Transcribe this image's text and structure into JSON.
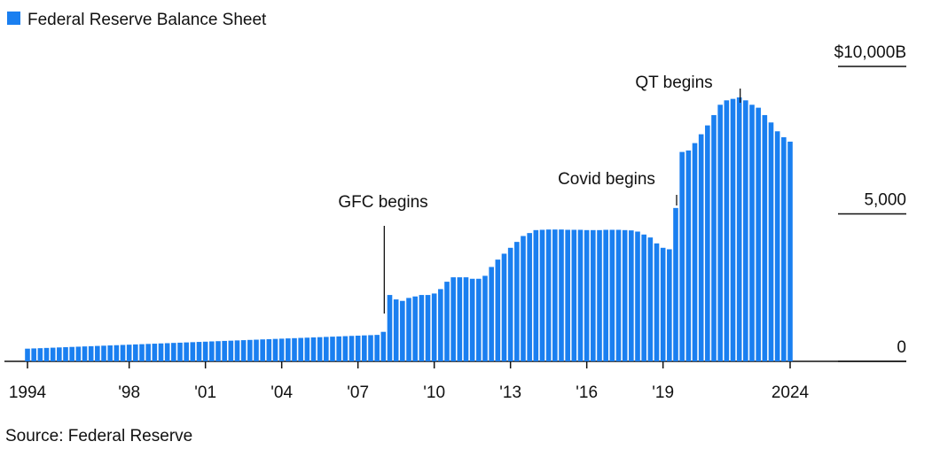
{
  "chart_data": {
    "type": "bar",
    "title": "Federal Reserve Balance Sheet",
    "source": "Source: Federal Reserve",
    "color": "#1a7ff0",
    "categories": [
      "1994",
      null,
      null,
      null,
      null,
      null,
      null,
      null,
      null,
      null,
      null,
      null,
      null,
      null,
      null,
      null,
      "'98",
      null,
      null,
      null,
      null,
      null,
      null,
      null,
      null,
      null,
      null,
      null,
      "'01",
      null,
      null,
      null,
      null,
      null,
      null,
      null,
      null,
      null,
      null,
      null,
      "'04",
      null,
      null,
      null,
      null,
      null,
      null,
      null,
      null,
      null,
      null,
      null,
      "'07",
      null,
      null,
      null,
      null,
      null,
      null,
      null,
      null,
      null,
      null,
      null,
      "'10",
      null,
      null,
      null,
      null,
      null,
      null,
      null,
      null,
      null,
      null,
      null,
      "'13",
      null,
      null,
      null,
      null,
      null,
      null,
      null,
      null,
      null,
      null,
      null,
      "'16",
      null,
      null,
      null,
      null,
      null,
      null,
      null,
      null,
      null,
      null,
      null,
      "'19",
      null,
      null,
      null,
      null,
      null,
      null,
      null,
      null,
      null,
      null,
      null,
      null,
      null,
      null,
      null,
      null,
      null,
      null,
      null,
      "2024"
    ],
    "values": [
      430,
      438,
      446,
      455,
      463,
      472,
      480,
      489,
      497,
      506,
      514,
      523,
      531,
      540,
      548,
      557,
      565,
      574,
      582,
      591,
      599,
      608,
      616,
      625,
      633,
      642,
      650,
      659,
      667,
      676,
      684,
      693,
      701,
      710,
      718,
      727,
      735,
      744,
      752,
      761,
      769,
      778,
      786,
      795,
      803,
      812,
      820,
      829,
      837,
      846,
      854,
      863,
      871,
      880,
      888,
      897,
      1000,
      2250,
      2100,
      2050,
      2150,
      2200,
      2250,
      2250,
      2300,
      2450,
      2700,
      2850,
      2850,
      2850,
      2800,
      2800,
      2900,
      3200,
      3450,
      3650,
      3850,
      4050,
      4250,
      4350,
      4450,
      4460,
      4470,
      4470,
      4470,
      4460,
      4460,
      4460,
      4450,
      4450,
      4450,
      4460,
      4460,
      4460,
      4450,
      4440,
      4400,
      4300,
      4200,
      4000,
      3850,
      3800,
      5200,
      7100,
      7150,
      7400,
      7700,
      8000,
      8350,
      8700,
      8850,
      8900,
      8950,
      8850,
      8700,
      8600,
      8350,
      8100,
      7800,
      7600,
      7450
    ],
    "ylim": [
      0,
      10000
    ],
    "yticks": [
      0,
      {
        "value": 5000,
        "label": "5,000"
      },
      {
        "value": 10000,
        "label": "$10,000B"
      }
    ],
    "annotations": [
      "GFC begins",
      "Covid begins",
      "QT begins"
    ]
  }
}
